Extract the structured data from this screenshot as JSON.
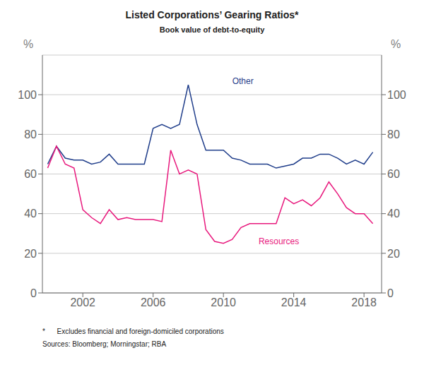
{
  "chart_data": {
    "type": "line",
    "title": "Listed Corporations’ Gearing Ratios*",
    "subtitle": "Book value of debt-to-equity",
    "footnote": "*      Excludes financial and foreign-domiciled corporations",
    "sources": "Sources: Bloomberg; Morningstar; RBA",
    "y_label": "%",
    "y2_label": "%",
    "x": [
      2000.0,
      2000.5,
      2001.0,
      2001.5,
      2002.0,
      2002.5,
      2003.0,
      2003.5,
      2004.0,
      2004.5,
      2005.0,
      2005.5,
      2006.0,
      2006.5,
      2007.0,
      2007.5,
      2008.0,
      2008.5,
      2009.0,
      2009.5,
      2010.0,
      2010.5,
      2011.0,
      2011.5,
      2012.0,
      2012.5,
      2013.0,
      2013.5,
      2014.0,
      2014.5,
      2015.0,
      2015.5,
      2016.0,
      2016.5,
      2017.0,
      2017.5,
      2018.0,
      2018.5
    ],
    "series": [
      {
        "name": "Other",
        "color": "#1f3d8a",
        "values": [
          65,
          74,
          68,
          67,
          67,
          65,
          66,
          70,
          65,
          65,
          65,
          65,
          83,
          85,
          83,
          85,
          105,
          85,
          72,
          72,
          72,
          68,
          67,
          65,
          65,
          65,
          63,
          64,
          65,
          68,
          68,
          70,
          70,
          68,
          65,
          67,
          65,
          71
        ]
      },
      {
        "name": "Resources",
        "color": "#e8197d",
        "values": [
          63,
          74,
          65,
          63,
          42,
          38,
          35,
          42,
          37,
          38,
          37,
          37,
          37,
          36,
          72,
          60,
          62,
          60,
          32,
          26,
          25,
          27,
          33,
          35,
          35,
          35,
          35,
          48,
          45,
          47,
          44,
          48,
          56,
          50,
          43,
          40,
          40,
          35
        ]
      }
    ],
    "annotations": [
      {
        "text": "Other",
        "x": 2010.3,
        "y": 107,
        "color": "#1f3d8a"
      },
      {
        "text": "Resources",
        "x": 2011.8,
        "y": 26,
        "color": "#e8197d"
      }
    ],
    "xlim": [
      1999.7,
      2019.0
    ],
    "xticks": [
      2002,
      2006,
      2010,
      2014,
      2018
    ],
    "ylim": [
      0,
      120
    ],
    "yticks": [
      0,
      20,
      40,
      60,
      80,
      100
    ],
    "y2lim": [
      0,
      120
    ],
    "y2ticks": [
      0,
      20,
      40,
      60,
      80,
      100
    ],
    "grid": "y"
  }
}
